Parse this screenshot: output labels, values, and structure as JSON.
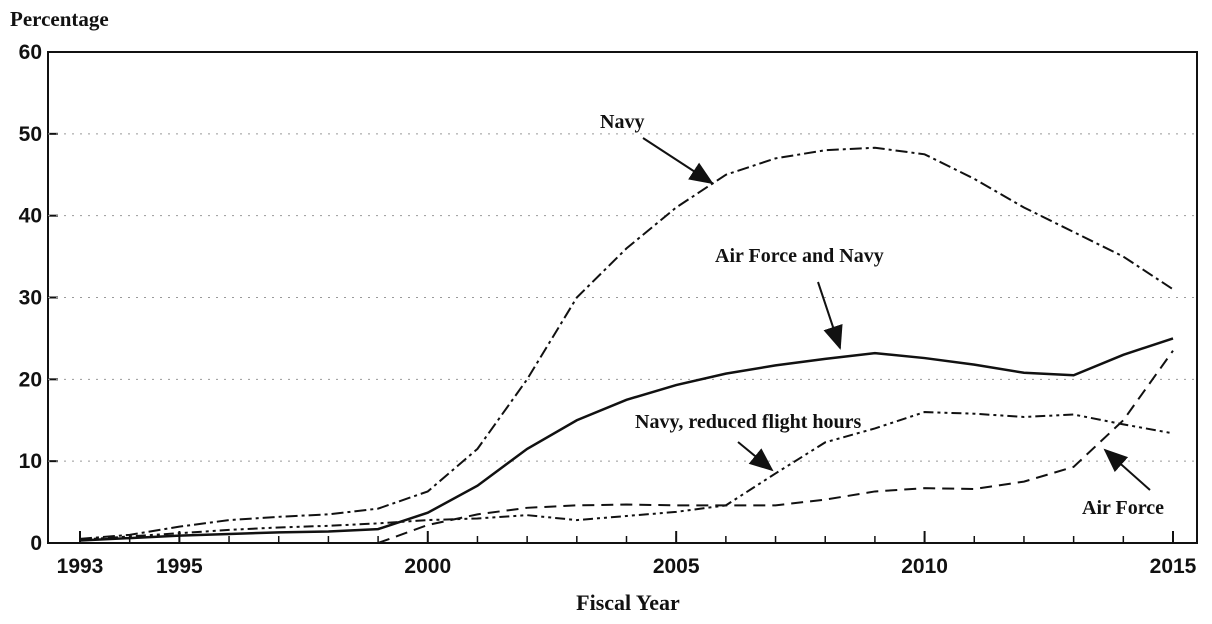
{
  "chart_data": {
    "type": "line",
    "ylabel": "Percentage",
    "xlabel": "Fiscal Year",
    "x": [
      1993,
      1994,
      1995,
      1996,
      1997,
      1998,
      1999,
      2000,
      2001,
      2002,
      2003,
      2004,
      2005,
      2006,
      2007,
      2008,
      2009,
      2010,
      2011,
      2012,
      2013,
      2014,
      2015
    ],
    "series": [
      {
        "name": "Navy",
        "color": "#111111",
        "values": [
          0.5,
          1,
          2,
          2.8,
          3.2,
          3.5,
          4.2,
          6.3,
          11.5,
          20,
          30,
          36,
          41,
          45,
          47,
          48,
          48.3,
          47.5,
          44.5,
          41,
          38,
          35,
          31
        ]
      },
      {
        "name": "Air Force and Navy",
        "color": "#111111",
        "values": [
          0.3,
          0.6,
          0.9,
          1.1,
          1.3,
          1.4,
          1.7,
          3.7,
          7,
          11.5,
          15,
          17.5,
          19.3,
          20.7,
          21.7,
          22.5,
          23.2,
          22.6,
          21.8,
          20.8,
          20.5,
          23,
          25
        ]
      },
      {
        "name": "Navy, reduced flight hours",
        "color": "#111111",
        "values": [
          0.4,
          0.8,
          1.2,
          1.6,
          1.9,
          2.1,
          2.4,
          2.8,
          3,
          3.4,
          2.8,
          3.3,
          3.8,
          4.6,
          8.5,
          12.3,
          14,
          16,
          15.8,
          15.4,
          15.7,
          14.5,
          13.4
        ]
      },
      {
        "name": "Air Force",
        "color": "#111111",
        "values": [
          null,
          null,
          null,
          null,
          null,
          null,
          0,
          2.2,
          3.5,
          4.3,
          4.6,
          4.7,
          4.6,
          4.6,
          4.6,
          5.3,
          6.3,
          6.7,
          6.6,
          7.5,
          9.3,
          15,
          23.5
        ]
      }
    ],
    "xlim": [
      1993,
      2015
    ],
    "xticks": [
      1993,
      1995,
      2000,
      2005,
      2010,
      2015
    ],
    "ylim": [
      0,
      60
    ],
    "yticks": [
      0,
      10,
      20,
      30,
      40,
      50,
      60
    ],
    "grid": true
  }
}
